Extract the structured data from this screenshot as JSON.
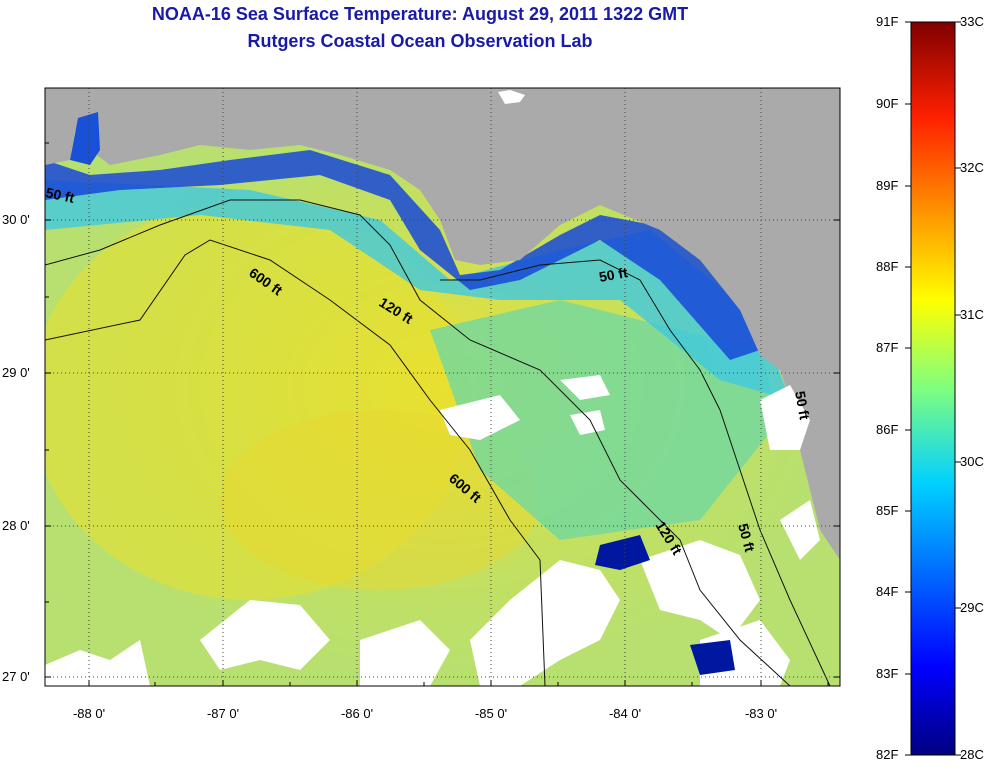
{
  "title": "NOAA-16 Sea Surface Temperature:  August 29, 2011 1322 GMT",
  "subtitle": "Rutgers Coastal Ocean Observation Lab",
  "lon_labels": [
    "-88 0'",
    "-87 0'",
    "-86 0'",
    "-85 0'",
    "-84 0'",
    "-83 0'"
  ],
  "lat_labels": [
    "30 0'",
    "29 0'",
    "28 0'",
    "27 0'"
  ],
  "contours": {
    "c50_a": "50 ft",
    "c600_a": "600 ft",
    "c120_a": "120 ft",
    "c50_b": "50 ft",
    "c600_b": "600 ft",
    "c120_b": "120 ft",
    "c50_c": "50 ft",
    "c50_d": "50 ft"
  },
  "colorbar": {
    "fahrenheit": [
      "91F",
      "90F",
      "89F",
      "88F",
      "87F",
      "86F",
      "85F",
      "84F",
      "83F",
      "82F"
    ],
    "celsius": [
      "33C",
      "32C",
      "31C",
      "30C",
      "29C",
      "28C"
    ]
  },
  "colors": {
    "land": "#aaaaaa",
    "cloud": "#ffffff",
    "warm": "#e8e020",
    "shelf": "#40c8b0",
    "coast": "#1040d0"
  }
}
